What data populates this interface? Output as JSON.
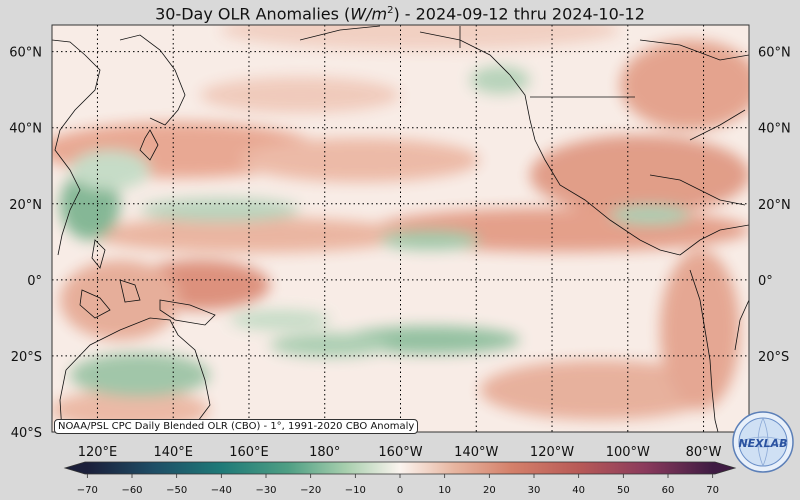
{
  "title": {
    "prefix": "30-Day OLR Anomalies (",
    "units_base": "W/m",
    "units_exp": "2",
    "suffix": ") - 2024-09-12 thru 2024-10-12"
  },
  "map": {
    "lat_labels": [
      "60°N",
      "40°N",
      "20°N",
      "0°",
      "20°S",
      "40°S"
    ],
    "lat_values": [
      60,
      40,
      20,
      0,
      -20,
      -40
    ],
    "lat_range": [
      -40,
      67
    ],
    "lon_labels": [
      "120°E",
      "140°E",
      "160°E",
      "180°",
      "160°W",
      "140°W",
      "120°W",
      "100°W",
      "80°W"
    ],
    "lon_values": [
      120,
      140,
      160,
      180,
      200,
      220,
      240,
      260,
      280
    ],
    "lon_range": [
      108,
      292
    ],
    "gridlines": "dotted"
  },
  "colorbar": {
    "ticks": [
      -70,
      -60,
      -50,
      -40,
      -30,
      -20,
      -10,
      0,
      10,
      20,
      30,
      40,
      50,
      60,
      70
    ],
    "tick_labels": [
      "−70",
      "−60",
      "−50",
      "−40",
      "−30",
      "−20",
      "−10",
      "0",
      "10",
      "20",
      "30",
      "40",
      "50",
      "60",
      "70"
    ],
    "range": [
      -75,
      75
    ],
    "colors": {
      "-70": "#1b1f3a",
      "-55": "#1f4e66",
      "-40": "#1f7a78",
      "-25": "#4f9f84",
      "-12": "#a8cfae",
      "0": "#fbf4ef",
      "12": "#e7b6a1",
      "25": "#d4806a",
      "40": "#b85a57",
      "55": "#8a3a5c",
      "70": "#3f1b43"
    }
  },
  "source_note": "NOAA/PSL CPC Daily Blended OLR (CBO) - 1°, 1991-2020 CBO Anomaly",
  "logo": {
    "text": "NEXLAB",
    "icon": "globe-logo-icon"
  }
}
